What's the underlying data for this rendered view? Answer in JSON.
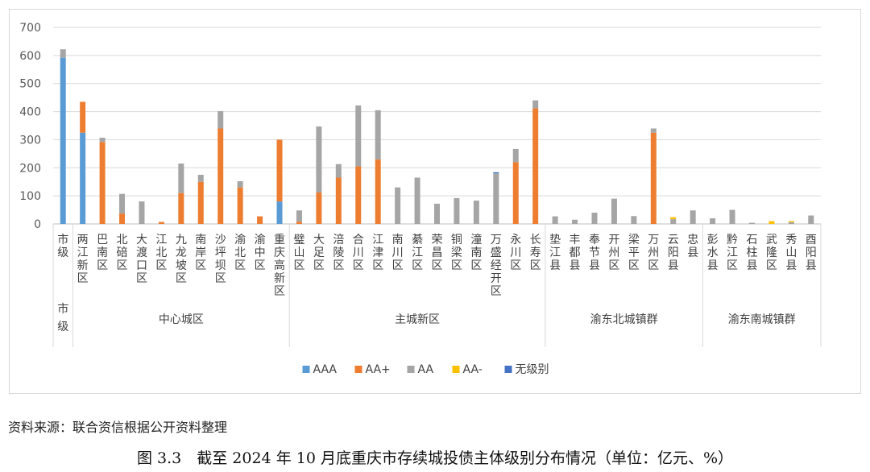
{
  "source_note": "资料来源：联合资信根据公开资料整理",
  "figure_caption": "图 3.3　截至 2024 年 10 月底重庆市存续城投债主体级别分布情况（单位：亿元、%）",
  "chart_data": {
    "type": "bar",
    "stacked": true,
    "ylim": [
      0,
      700
    ],
    "yticks": [
      0,
      100,
      200,
      300,
      400,
      500,
      600,
      700
    ],
    "grid": true,
    "legend_position": "bottom",
    "categories": [
      "市级",
      "两江新区",
      "巴南区",
      "北碚区",
      "大渡口区",
      "江北区",
      "九龙坡区",
      "南岸区",
      "沙坪坝区",
      "渝北区",
      "渝中区",
      "重庆高新区",
      "璧山区",
      "大足区",
      "涪陵区",
      "合川区",
      "江津区",
      "南川区",
      "綦江区",
      "荣昌区",
      "铜梁区",
      "潼南区",
      "万盛经开区",
      "永川区",
      "长寿区",
      "垫江县",
      "丰都县",
      "奉节县",
      "开州区",
      "梁平区",
      "万州区",
      "云阳县",
      "忠县",
      "彭水县",
      "黔江区",
      "石柱县",
      "武隆区",
      "秀山县",
      "酉阳县"
    ],
    "groups": [
      {
        "label": "市级",
        "start": 0,
        "end": 0
      },
      {
        "label": "中心城区",
        "start": 1,
        "end": 11
      },
      {
        "label": "主城新区",
        "start": 12,
        "end": 24
      },
      {
        "label": "渝东北城镇群",
        "start": 25,
        "end": 32
      },
      {
        "label": "渝东南城镇群",
        "start": 33,
        "end": 38
      }
    ],
    "series": [
      {
        "name": "AAA",
        "color": "#5b9bd5",
        "values": [
          592,
          325,
          0,
          0,
          0,
          0,
          0,
          0,
          0,
          0,
          0,
          80,
          0,
          0,
          0,
          0,
          0,
          0,
          0,
          0,
          0,
          0,
          0,
          0,
          0,
          0,
          0,
          0,
          0,
          0,
          0,
          0,
          0,
          0,
          0,
          0,
          0,
          0,
          0
        ]
      },
      {
        "name": "AA+",
        "color": "#ed7d31",
        "values": [
          0,
          110,
          292,
          37,
          0,
          7,
          110,
          150,
          340,
          130,
          27,
          220,
          8,
          112,
          165,
          205,
          230,
          0,
          0,
          0,
          0,
          0,
          0,
          220,
          412,
          0,
          0,
          0,
          0,
          0,
          325,
          0,
          0,
          0,
          0,
          0,
          0,
          0,
          0
        ]
      },
      {
        "name": "AA",
        "color": "#a5a5a5",
        "values": [
          30,
          0,
          15,
          70,
          80,
          0,
          105,
          25,
          62,
          22,
          0,
          0,
          40,
          235,
          48,
          217,
          175,
          130,
          165,
          72,
          92,
          83,
          180,
          47,
          28,
          27,
          15,
          40,
          90,
          28,
          15,
          17,
          48,
          20,
          50,
          4,
          0,
          6,
          30
        ]
      },
      {
        "name": "AA-",
        "color": "#ffc000",
        "values": [
          0,
          0,
          0,
          0,
          0,
          0,
          0,
          0,
          0,
          0,
          0,
          0,
          0,
          0,
          0,
          0,
          0,
          0,
          0,
          0,
          0,
          0,
          0,
          0,
          0,
          0,
          0,
          0,
          0,
          0,
          0,
          7,
          0,
          0,
          0,
          0,
          10,
          4,
          0
        ]
      },
      {
        "name": "无级别",
        "color": "#4472c4",
        "values": [
          0,
          0,
          0,
          0,
          0,
          0,
          0,
          0,
          0,
          0,
          0,
          0,
          0,
          0,
          0,
          0,
          0,
          0,
          0,
          0,
          0,
          0,
          4,
          0,
          0,
          0,
          0,
          0,
          0,
          0,
          0,
          0,
          0,
          0,
          0,
          0,
          0,
          0,
          0
        ]
      }
    ]
  }
}
